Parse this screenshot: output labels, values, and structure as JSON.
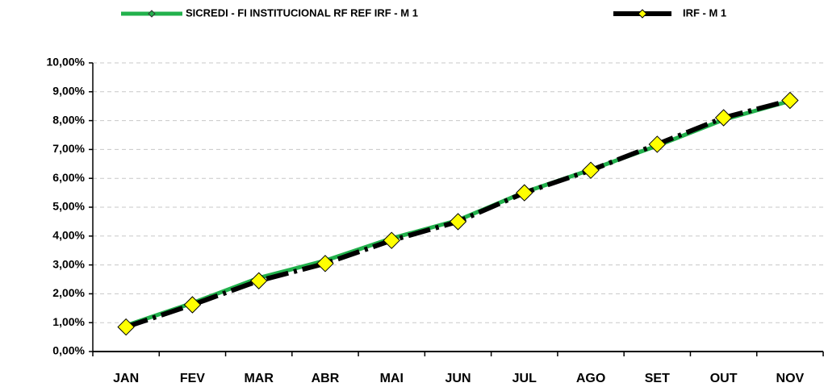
{
  "chart_data": {
    "type": "line",
    "categories": [
      "JAN",
      "FEV",
      "MAR",
      "ABR",
      "MAI",
      "JUN",
      "JUL",
      "AGO",
      "SET",
      "OUT",
      "NOV"
    ],
    "series": [
      {
        "name": "SICREDI - FI INSTITUCIONAL RF REF IRF - M 1",
        "color": "#22b14c",
        "values": [
          0.9,
          1.68,
          2.55,
          3.15,
          3.92,
          4.55,
          5.52,
          6.3,
          7.13,
          8.03,
          8.68
        ]
      },
      {
        "name": "IRF - M 1",
        "color": "#000000",
        "values": [
          0.85,
          1.62,
          2.45,
          3.05,
          3.85,
          4.5,
          5.5,
          6.28,
          7.18,
          8.1,
          8.7
        ]
      }
    ],
    "ylim": [
      0,
      10
    ],
    "yticks": [
      {
        "value": 0,
        "label": "0,00%"
      },
      {
        "value": 1,
        "label": "1,00%"
      },
      {
        "value": 2,
        "label": "2,00%"
      },
      {
        "value": 3,
        "label": "3,00%"
      },
      {
        "value": 4,
        "label": "4,00%"
      },
      {
        "value": 5,
        "label": "5,00%"
      },
      {
        "value": 6,
        "label": "6,00%"
      },
      {
        "value": 7,
        "label": "7,00%"
      },
      {
        "value": 8,
        "label": "8,00%"
      },
      {
        "value": 9,
        "label": "9,00%"
      },
      {
        "value": 10,
        "label": "10,00%"
      }
    ],
    "grid": true,
    "legend": "top"
  }
}
